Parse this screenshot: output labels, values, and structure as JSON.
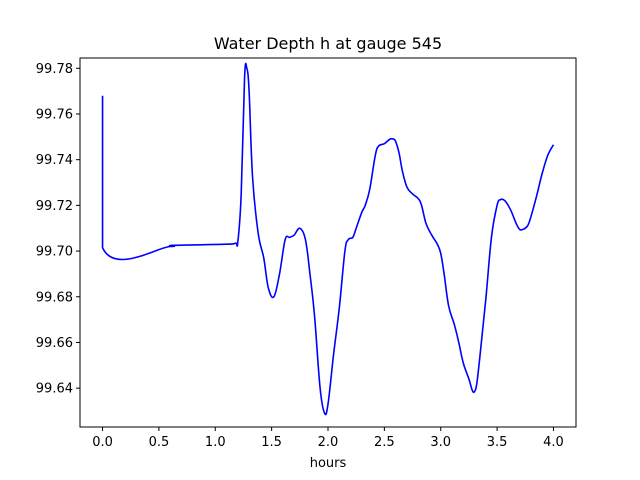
{
  "chart_data": {
    "type": "line",
    "title": "Water Depth h at gauge 545",
    "xlabel": "hours",
    "ylabel": "",
    "xlim": [
      -0.2,
      4.2
    ],
    "ylim": [
      99.623,
      99.7845
    ],
    "x_ticks": [
      0.0,
      0.5,
      1.0,
      1.5,
      2.0,
      2.5,
      3.0,
      3.5,
      4.0
    ],
    "x_tick_labels": [
      "0.0",
      "0.5",
      "1.0",
      "1.5",
      "2.0",
      "2.5",
      "3.0",
      "3.5",
      "4.0"
    ],
    "y_ticks": [
      99.64,
      99.66,
      99.68,
      99.7,
      99.72,
      99.74,
      99.76,
      99.78
    ],
    "y_tick_labels": [
      "99.64",
      "99.66",
      "99.68",
      "99.70",
      "99.72",
      "99.74",
      "99.76",
      "99.78"
    ],
    "grid": false,
    "series": [
      {
        "color": "#0000ff",
        "x": [
          0.0,
          0.0,
          0.6,
          0.62,
          1.1,
          1.18,
          1.2,
          1.23,
          1.26,
          1.28,
          1.3,
          1.33,
          1.38,
          1.43,
          1.47,
          1.52,
          1.57,
          1.62,
          1.66,
          1.7,
          1.75,
          1.8,
          1.84,
          1.88,
          1.93,
          1.97,
          2.0,
          2.05,
          2.1,
          2.15,
          2.18,
          2.22,
          2.25,
          2.3,
          2.33,
          2.37,
          2.42,
          2.45,
          2.5,
          2.55,
          2.58,
          2.6,
          2.63,
          2.66,
          2.7,
          2.75,
          2.8,
          2.83,
          2.87,
          2.92,
          2.97,
          3.0,
          3.03,
          3.07,
          3.12,
          3.16,
          3.2,
          3.25,
          3.28,
          3.3,
          3.32,
          3.35,
          3.4,
          3.45,
          3.5,
          3.53,
          3.57,
          3.62,
          3.67,
          3.7,
          3.73,
          3.77,
          3.8,
          3.85,
          3.9,
          3.95,
          4.0
        ],
        "y": [
          99.768,
          99.7015,
          99.702,
          99.7025,
          99.703,
          99.7035,
          99.704,
          99.725,
          99.776,
          99.78,
          99.77,
          99.733,
          99.708,
          99.697,
          99.684,
          99.68,
          99.69,
          99.705,
          99.706,
          99.707,
          99.71,
          99.705,
          99.69,
          99.672,
          99.64,
          99.629,
          99.633,
          99.655,
          99.675,
          99.7,
          99.705,
          99.706,
          99.71,
          99.717,
          99.72,
          99.727,
          99.742,
          99.746,
          99.747,
          99.749,
          99.749,
          99.748,
          99.743,
          99.735,
          99.728,
          99.725,
          99.723,
          99.72,
          99.712,
          99.707,
          99.703,
          99.699,
          99.69,
          99.676,
          99.668,
          99.66,
          99.651,
          99.644,
          99.639,
          99.6385,
          99.642,
          99.655,
          99.679,
          99.706,
          99.72,
          99.7225,
          99.722,
          99.718,
          99.712,
          99.7095,
          99.7095,
          99.711,
          99.715,
          99.724,
          99.734,
          99.742,
          99.7465
        ]
      }
    ]
  }
}
